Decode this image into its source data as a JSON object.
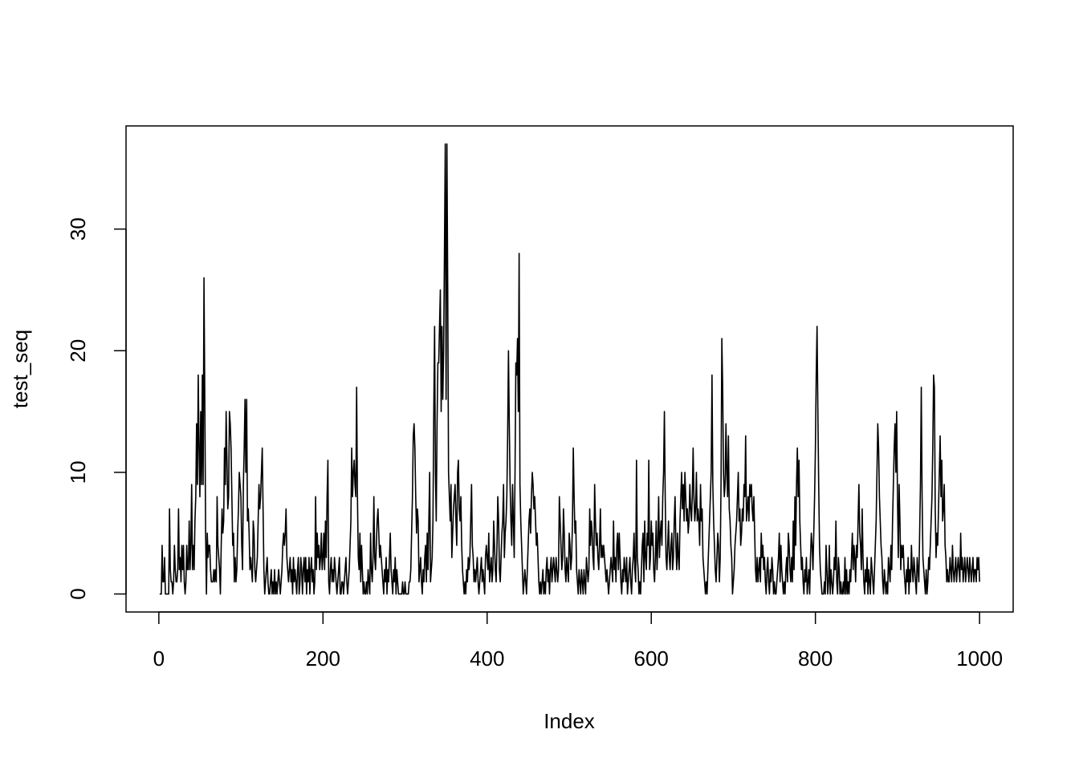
{
  "chart_data": {
    "type": "line",
    "xlabel": "Index",
    "ylabel": "test_seq",
    "color": "#000000",
    "xlim": [
      -39.96,
      1040.96
    ],
    "ylim": [
      -1.48,
      38.48
    ],
    "xticks": [
      0,
      200,
      400,
      600,
      800,
      1000
    ],
    "yticks": [
      0,
      10,
      20,
      30
    ],
    "grid": false,
    "values": [
      0,
      0,
      0,
      4,
      1,
      1,
      3,
      0,
      0,
      0,
      0,
      0,
      7,
      2,
      1,
      1,
      0,
      1,
      4,
      2,
      1,
      1,
      2,
      7,
      2,
      3,
      1,
      4,
      2,
      4,
      1,
      0,
      1,
      4,
      2,
      2,
      6,
      2,
      4,
      9,
      2,
      4,
      2,
      6,
      8,
      14,
      9,
      18,
      12,
      8,
      15,
      9,
      18,
      9,
      26,
      16,
      5,
      0,
      5,
      3,
      4,
      4,
      2,
      1,
      1,
      1,
      2,
      1,
      2,
      1,
      8,
      4,
      3,
      2,
      0,
      4,
      7,
      5,
      6,
      12,
      9,
      15,
      11,
      7,
      8,
      15,
      14,
      12,
      8,
      4,
      5,
      1,
      3,
      1,
      2,
      5,
      7,
      10,
      9,
      8,
      4,
      2,
      9,
      12,
      16,
      10,
      16,
      6,
      7,
      5,
      2,
      3,
      2,
      1,
      6,
      5,
      2,
      1,
      2,
      3,
      6,
      9,
      7,
      8,
      10,
      12,
      7,
      2,
      0,
      1,
      2,
      3,
      1,
      0,
      0,
      1,
      2,
      0,
      1,
      0,
      2,
      0,
      1,
      0,
      1,
      2,
      1,
      0,
      1,
      2,
      4,
      5,
      4,
      5,
      7,
      3,
      2,
      1,
      2,
      3,
      1,
      2,
      0,
      3,
      1,
      2,
      1,
      0,
      2,
      3,
      0,
      1,
      3,
      2,
      0,
      2,
      3,
      1,
      3,
      0,
      2,
      1,
      3,
      0,
      2,
      3,
      1,
      2,
      0,
      1,
      8,
      2,
      5,
      3,
      4,
      2,
      3,
      5,
      2,
      3,
      5,
      2,
      6,
      3,
      8,
      11,
      1,
      0,
      2,
      3,
      1,
      2,
      1,
      3,
      2,
      1,
      0,
      1,
      2,
      3,
      0,
      0,
      1,
      1,
      0,
      1,
      2,
      3,
      1,
      0,
      1,
      2,
      4,
      6,
      12,
      8,
      10,
      11,
      9,
      8,
      17,
      8,
      3,
      2,
      5,
      1,
      4,
      2,
      0,
      1,
      0,
      0,
      1,
      0,
      2,
      1,
      0,
      5,
      2,
      1,
      3,
      8,
      3,
      2,
      4,
      6,
      7,
      5,
      3,
      4,
      3,
      2,
      1,
      0,
      2,
      1,
      3,
      0,
      2,
      1,
      3,
      5,
      2,
      1,
      0,
      2,
      1,
      3,
      0,
      2,
      1,
      0,
      0,
      0,
      0,
      0,
      1,
      0,
      0,
      1,
      0,
      0,
      0,
      0,
      1,
      1,
      2,
      5,
      8,
      13,
      14,
      12,
      8,
      5,
      7,
      6,
      1,
      2,
      3,
      1,
      0,
      2,
      1,
      3,
      4,
      1,
      5,
      2,
      6,
      10,
      1,
      2,
      3,
      6,
      15,
      22,
      10,
      6,
      14,
      19,
      19,
      22,
      25,
      15,
      22,
      16,
      20,
      28,
      37,
      16,
      37,
      25,
      10,
      8,
      6,
      9,
      3,
      5,
      7,
      8,
      9,
      6,
      4,
      10,
      11,
      7,
      6,
      8,
      4,
      2,
      1,
      0,
      1,
      0,
      2,
      1,
      3,
      2,
      3,
      6,
      9,
      4,
      3,
      1,
      2,
      1,
      2,
      3,
      1,
      0,
      1,
      2,
      3,
      1,
      2,
      1,
      0,
      3,
      4,
      3,
      2,
      5,
      1,
      2,
      3,
      1,
      2,
      6,
      4,
      2,
      1,
      4,
      8,
      6,
      2,
      1,
      3,
      5,
      6,
      9,
      3,
      5,
      6,
      8,
      13,
      20,
      14,
      9,
      6,
      4,
      9,
      6,
      3,
      10,
      19,
      18,
      21,
      15,
      28,
      9,
      6,
      4,
      2,
      0,
      1,
      2,
      1,
      0,
      2,
      4,
      6,
      7,
      5,
      8,
      10,
      9,
      7,
      8,
      6,
      4,
      5,
      3,
      1,
      0,
      1,
      0,
      1,
      2,
      0,
      1,
      0,
      2,
      3,
      1,
      2,
      0,
      2,
      3,
      1,
      2,
      3,
      2,
      1,
      3,
      2,
      1,
      2,
      8,
      6,
      4,
      2,
      3,
      7,
      5,
      2,
      1,
      3,
      2,
      1,
      5,
      4,
      2,
      3,
      6,
      12,
      8,
      5,
      6,
      2,
      1,
      0,
      2,
      1,
      0,
      2,
      1,
      0,
      2,
      1,
      0,
      3,
      2,
      1,
      2,
      7,
      4,
      6,
      5,
      3,
      2,
      9,
      6,
      4,
      5,
      3,
      2,
      4,
      7,
      3,
      4,
      3,
      4,
      3,
      2,
      1,
      2,
      1,
      0,
      1,
      2,
      3,
      2,
      1,
      6,
      2,
      3,
      1,
      4,
      5,
      2,
      5,
      3,
      1,
      0,
      2,
      1,
      3,
      2,
      1,
      3,
      0,
      1,
      2,
      3,
      1,
      0,
      2,
      3,
      5,
      2,
      1,
      11,
      3,
      2,
      0,
      1,
      0,
      2,
      4,
      5,
      1,
      6,
      3,
      2,
      5,
      4,
      11,
      2,
      3,
      6,
      4,
      5,
      2,
      1,
      3,
      6,
      2,
      4,
      8,
      3,
      5,
      6,
      4,
      8,
      10,
      15,
      8,
      3,
      2,
      4,
      6,
      3,
      2,
      4,
      5,
      2,
      3,
      6,
      8,
      4,
      2,
      5,
      3,
      2,
      6,
      8,
      10,
      7,
      9,
      6,
      10,
      8,
      6,
      7,
      5,
      6,
      9,
      7,
      6,
      8,
      12,
      8,
      6,
      7,
      10,
      6,
      7,
      6,
      4,
      9,
      6,
      7,
      3,
      2,
      1,
      0,
      1,
      0,
      2,
      4,
      6,
      8,
      10,
      18,
      9,
      6,
      4,
      2,
      1,
      3,
      5,
      4,
      1,
      3,
      9,
      21,
      17,
      10,
      8,
      9,
      14,
      10,
      8,
      13,
      7,
      6,
      4,
      3,
      0,
      1,
      2,
      4,
      5,
      6,
      8,
      10,
      6,
      7,
      4,
      5,
      7,
      6,
      9,
      8,
      13,
      6,
      7,
      8,
      6,
      9,
      8,
      9,
      7,
      6,
      8,
      5,
      2,
      1,
      3,
      1,
      2,
      3,
      1,
      5,
      3,
      4,
      2,
      3,
      1,
      0,
      2,
      3,
      1,
      0,
      2,
      1,
      3,
      2,
      0,
      1,
      0,
      0,
      1,
      2,
      3,
      5,
      1,
      4,
      2,
      1,
      0,
      1,
      0,
      2,
      3,
      1,
      5,
      4,
      2,
      1,
      3,
      1,
      6,
      2,
      8,
      4,
      9,
      12,
      8,
      11,
      6,
      4,
      2,
      3,
      1,
      0,
      2,
      1,
      3,
      0,
      1,
      2,
      0,
      3,
      5,
      4,
      2,
      5,
      8,
      12,
      18,
      22,
      15,
      9,
      4,
      2,
      1,
      0,
      0,
      0,
      1,
      0,
      4,
      2,
      0,
      1,
      4,
      0,
      2,
      1,
      0,
      1,
      3,
      2,
      6,
      1,
      0,
      3,
      2,
      0,
      1,
      0,
      0,
      1,
      0,
      3,
      0,
      2,
      0,
      1,
      0,
      2,
      1,
      3,
      5,
      2,
      4,
      3,
      1,
      4,
      3,
      6,
      9,
      5,
      4,
      2,
      7,
      3,
      1,
      0,
      2,
      1,
      3,
      0,
      2,
      1,
      0,
      3,
      2,
      1,
      0,
      2,
      4,
      6,
      10,
      14,
      12,
      8,
      6,
      4,
      3,
      1,
      0,
      2,
      1,
      0,
      1,
      0,
      3,
      2,
      1,
      4,
      2,
      6,
      9,
      12,
      14,
      10,
      15,
      8,
      3,
      9,
      6,
      2,
      4,
      3,
      4,
      2,
      1,
      0,
      2,
      1,
      3,
      0,
      2,
      1,
      4,
      2,
      1,
      3,
      2,
      1,
      0,
      3,
      2,
      1,
      5,
      9,
      17,
      8,
      3,
      2,
      1,
      0,
      2,
      0,
      1,
      3,
      2,
      4,
      6,
      8,
      12,
      18,
      17,
      7,
      3,
      5,
      4,
      7,
      10,
      13,
      8,
      11,
      6,
      7,
      9,
      4,
      3,
      1,
      2,
      1,
      1,
      3,
      2,
      1,
      4,
      2,
      1,
      2,
      3,
      1,
      2,
      3,
      2,
      1,
      5,
      2,
      3,
      1,
      2,
      3,
      1,
      2,
      3,
      2,
      1,
      3,
      2,
      1,
      2,
      3,
      1,
      2,
      2,
      1,
      3,
      2,
      3,
      1
    ]
  }
}
